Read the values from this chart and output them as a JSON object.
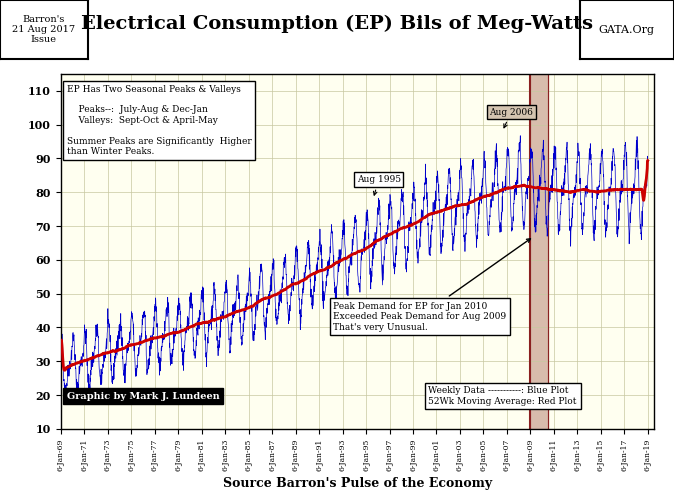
{
  "title": "Electrical Consumption (EP) Bils of Meg-Watts",
  "xlabel": "Source Barron's Pulse of the Economy",
  "ylabel": "",
  "bg_color": "#FFFFF0",
  "plot_bg_color": "#FFFFF0",
  "grid_color": "#C8C8A0",
  "line_color_blue": "#0000CC",
  "line_color_red": "#CC0000",
  "highlight_color": "#C8A090",
  "ylim": [
    10,
    115
  ],
  "yticks": [
    10,
    20,
    30,
    40,
    50,
    60,
    70,
    80,
    90,
    100,
    110
  ],
  "start_year": 1969,
  "end_year": 2019,
  "annotation1_text": "EP Has Two Seasonal Peaks & Valleys\n\n    Peaks--:  July-Aug & Dec-Jan\n    Valleys:  Sept-Oct & April-May\n\nSummer Peaks are Significantly  Higher\nthan Winter Peaks.",
  "annotation2_text": "Peak Demand for EP for Jan 2010\nExceeded Peak Demand for Aug 2009\nThat's very Unusual.",
  "annotation3_text": "Aug 1995",
  "annotation4_text": "Aug 2006",
  "legend_text": "Weekly Data -----------: Blue Plot\n52Wk Moving Average: Red Plot",
  "credit_text": "Graphic by Mark J. Lundeen",
  "barrons_text": "Barron's\n21 Aug 2017\nIssue",
  "gata_text": "GATA.Org"
}
